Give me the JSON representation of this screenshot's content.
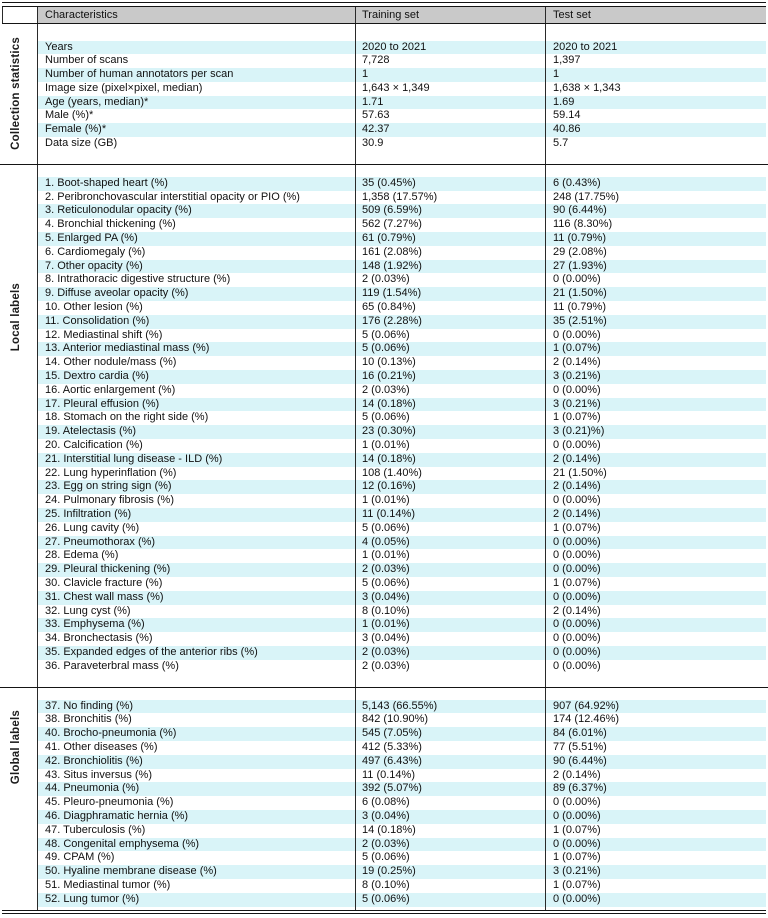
{
  "colors": {
    "row_highlight": "#d9f4f8",
    "header_background": "#c9c9c9",
    "rule_color": "#151515"
  },
  "header": {
    "columns": [
      "Characteristics",
      "Training set",
      "Test set"
    ]
  },
  "sections": [
    {
      "label": "Collection statistics",
      "rows": [
        {
          "characteristic": "Years",
          "training": "2020 to 2021",
          "test": "2020 to 2021"
        },
        {
          "characteristic": "Number of scans",
          "training": "7,728",
          "test": "1,397"
        },
        {
          "characteristic": "Number of human annotators per scan",
          "training": "1",
          "test": "1"
        },
        {
          "characteristic": "Image size (pixel×pixel, median)",
          "training": "1,643 × 1,349",
          "test": "1,638 × 1,343"
        },
        {
          "characteristic": "Age (years, median)*",
          "training": "1.71",
          "test": "1.69"
        },
        {
          "characteristic": "Male (%)*",
          "training": "57.63",
          "test": "59.14"
        },
        {
          "characteristic": "Female (%)*",
          "training": "42.37",
          "test": "40.86"
        },
        {
          "characteristic": "Data size (GB)",
          "training": "30.9",
          "test": "5.7"
        }
      ]
    },
    {
      "label": "Local labels",
      "rows": [
        {
          "characteristic": "1. Boot-shaped heart (%)",
          "training": "35 (0.45%)",
          "test": "6 (0.43%)"
        },
        {
          "characteristic": "2. Peribronchovascular interstitial opacity or PIO (%)",
          "training": "1,358 (17.57%)",
          "test": "248 (17.75%)"
        },
        {
          "characteristic": "3. Reticulonodular opacity (%)",
          "training": "509 (6.59%)",
          "test": "90 (6.44%)"
        },
        {
          "characteristic": "4. Bronchial thickening (%)",
          "training": "562 (7.27%)",
          "test": "116 (8.30%)"
        },
        {
          "characteristic": "5. Enlarged PA (%)",
          "training": "61 (0.79%)",
          "test": "11 (0.79%)"
        },
        {
          "characteristic": "6. Cardiomegaly (%)",
          "training": "161 (2.08%)",
          "test": "29 (2.08%)"
        },
        {
          "characteristic": "7. Other opacity (%)",
          "training": "148 (1.92%)",
          "test": "27 (1.93%)"
        },
        {
          "characteristic": "8. Intrathoracic digestive structure (%)",
          "training": "2 (0.03%)",
          "test": "0 (0.00%)"
        },
        {
          "characteristic": "9. Diffuse aveolar opacity (%)",
          "training": "119 (1.54%)",
          "test": "21 (1.50%)"
        },
        {
          "characteristic": "10. Other lesion (%)",
          "training": "65 (0.84%)",
          "test": "11 (0.79%)"
        },
        {
          "characteristic": "11. Consolidation (%)",
          "training": "176 (2.28%)",
          "test": "35 (2.51%)"
        },
        {
          "characteristic": "12. Mediastinal shift (%)",
          "training": "5 (0.06%)",
          "test": "0 (0.00%)"
        },
        {
          "characteristic": "13. Anterior mediastinal mass (%)",
          "training": "5 (0.06%)",
          "test": "1 (0.07%)"
        },
        {
          "characteristic": "14. Other nodule/mass (%)",
          "training": "10 (0.13%)",
          "test": "2 (0.14%)"
        },
        {
          "characteristic": "15. Dextro cardia (%)",
          "training": "16 (0.21%)",
          "test": "3 (0.21%)"
        },
        {
          "characteristic": "16. Aortic enlargement (%)",
          "training": "2 (0.03%)",
          "test": "0 (0.00%)"
        },
        {
          "characteristic": "17. Pleural effusion (%)",
          "training": "14 (0.18%)",
          "test": "3 (0.21%)"
        },
        {
          "characteristic": "18. Stomach on the right side (%)",
          "training": "5 (0.06%)",
          "test": "1 (0.07%)"
        },
        {
          "characteristic": "19. Atelectasis (%)",
          "training": "23 (0.30%)",
          "test": "3 (0.21)%)"
        },
        {
          "characteristic": "20. Calcification (%)",
          "training": "1 (0.01%)",
          "test": "0 (0.00%)"
        },
        {
          "characteristic": "21. Interstitial lung disease - ILD (%)",
          "training": "14 (0.18%)",
          "test": "2 (0.14%)"
        },
        {
          "characteristic": "22. Lung hyperinflation (%)",
          "training": "108 (1.40%)",
          "test": "21 (1.50%)"
        },
        {
          "characteristic": "23. Egg on string sign (%)",
          "training": "12 (0.16%)",
          "test": "2 (0.14%)"
        },
        {
          "characteristic": "24. Pulmonary fibrosis (%)",
          "training": "1 (0.01%)",
          "test": "0 (0.00%)"
        },
        {
          "characteristic": "25. Infiltration (%)",
          "training": "11 (0.14%)",
          "test": "2 (0.14%)"
        },
        {
          "characteristic": "26. Lung cavity (%)",
          "training": "5 (0.06%)",
          "test": "1 (0.07%)"
        },
        {
          "characteristic": "27. Pneumothorax (%)",
          "training": "4 (0.05%)",
          "test": "0 (0.00%)"
        },
        {
          "characteristic": "28. Edema (%)",
          "training": "1 (0.01%)",
          "test": "0 (0.00%)"
        },
        {
          "characteristic": "29. Pleural thickening (%)",
          "training": "2 (0.03%)",
          "test": "0 (0.00%)"
        },
        {
          "characteristic": "30. Clavicle fracture (%)",
          "training": "5 (0.06%)",
          "test": "1 (0.07%)"
        },
        {
          "characteristic": "31. Chest wall mass (%)",
          "training": "3 (0.04%)",
          "test": "0 (0.00%)"
        },
        {
          "characteristic": "32. Lung cyst (%)",
          "training": "8 (0.10%)",
          "test": "2 (0.14%)"
        },
        {
          "characteristic": "33. Emphysema (%)",
          "training": "1 (0.01%)",
          "test": "0 (0.00%)"
        },
        {
          "characteristic": "34. Bronchectasis (%)",
          "training": "3 (0.04%)",
          "test": "0 (0.00%)"
        },
        {
          "characteristic": "35. Expanded edges of the anterior ribs (%)",
          "training": "2 (0.03%)",
          "test": "0 (0.00%)"
        },
        {
          "characteristic": "36. Paraveterbral mass (%)",
          "training": "2 (0.03%)",
          "test": "0 (0.00%)"
        }
      ]
    },
    {
      "label": "Global labels",
      "rows": [
        {
          "characteristic": "37. No finding (%)",
          "training": "5,143 (66.55%)",
          "test": "907 (64.92%)"
        },
        {
          "characteristic": "38. Bronchitis (%)",
          "training": "842 (10.90%)",
          "test": "174 (12.46%)"
        },
        {
          "characteristic": "40. Brocho-pneumonia (%)",
          "training": "545 (7.05%)",
          "test": "84 (6.01%)"
        },
        {
          "characteristic": "41. Other diseases (%)",
          "training": "412 (5.33%)",
          "test": "77 (5.51%)"
        },
        {
          "characteristic": "42. Bronchiolitis (%)",
          "training": "497 (6.43%)",
          "test": "90 (6.44%)"
        },
        {
          "characteristic": "43. Situs inversus (%)",
          "training": "11 (0.14%)",
          "test": "2 (0.14%)"
        },
        {
          "characteristic": "44. Pneumonia (%)",
          "training": "392 (5.07%)",
          "test": "89 (6.37%)"
        },
        {
          "characteristic": "45. Pleuro-pneumonia (%)",
          "training": "6 (0.08%)",
          "test": "0 (0.00%)"
        },
        {
          "characteristic": "46. Diagphramatic hernia (%)",
          "training": "3 (0.04%)",
          "test": "0 (0.00%)"
        },
        {
          "characteristic": "47. Tuberculosis (%)",
          "training": "14 (0.18%)",
          "test": "1 (0.07%)"
        },
        {
          "characteristic": "48. Congenital emphysema (%)",
          "training": "2 (0.03%)",
          "test": "0 (0.00%)"
        },
        {
          "characteristic": "49. CPAM (%)",
          "training": "5 (0.06%)",
          "test": "1 (0.07%)"
        },
        {
          "characteristic": "50. Hyaline membrane disease (%)",
          "training": "19 (0.25%)",
          "test": "3 (0.21%)"
        },
        {
          "characteristic": "51. Mediastinal tumor (%)",
          "training": "8 (0.10%)",
          "test": "1 (0.07%)"
        },
        {
          "characteristic": "52. Lung tumor (%)",
          "training": "5 (0.06%)",
          "test": "0 (0.00%)"
        }
      ]
    }
  ]
}
